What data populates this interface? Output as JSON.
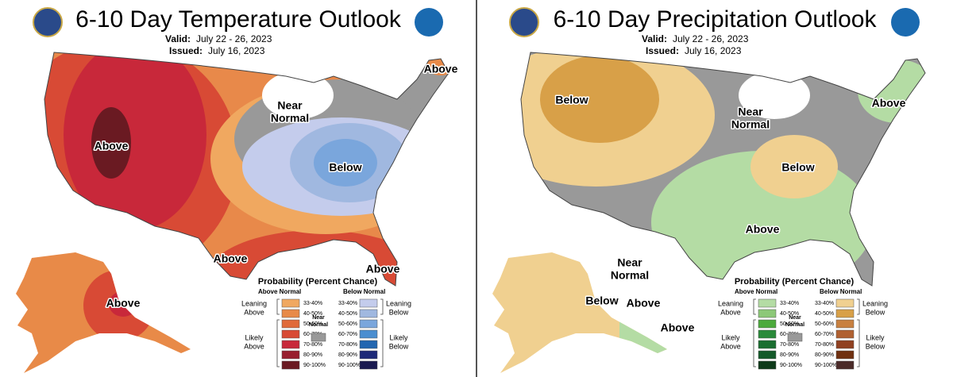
{
  "panels": [
    {
      "title": "6-10 Day Temperature Outlook",
      "valid_label": "Valid:",
      "valid": "July 22 - 26, 2023",
      "issued_label": "Issued:",
      "issued": "July 16, 2023",
      "region_labels": [
        [
          "Above"
        ],
        [
          "Near",
          "Normal"
        ],
        [
          "Above"
        ],
        [
          "Below"
        ],
        [
          "Above"
        ],
        [
          "Above"
        ],
        [
          "Above"
        ]
      ],
      "legend": {
        "title": "Probability (Percent Chance)",
        "left_header": "Above Normal",
        "right_header": "Below Normal",
        "left": [
          {
            "label": "33-40%",
            "color": "#f0a860"
          },
          {
            "label": "40-50%",
            "color": "#e88a48"
          },
          {
            "label": "50-60%",
            "color": "#e06a3a"
          },
          {
            "label": "60-70%",
            "color": "#d84a35"
          },
          {
            "label": "70-80%",
            "color": "#c8283a"
          },
          {
            "label": "80-90%",
            "color": "#981e2e"
          },
          {
            "label": "90-100%",
            "color": "#6a1a22"
          }
        ],
        "right": [
          {
            "label": "33-40%",
            "color": "#c4ccec"
          },
          {
            "label": "40-50%",
            "color": "#a0b8e0"
          },
          {
            "label": "50-60%",
            "color": "#7aa6dc"
          },
          {
            "label": "60-70%",
            "color": "#4a8ed0"
          },
          {
            "label": "70-80%",
            "color": "#2266b0"
          },
          {
            "label": "80-90%",
            "color": "#1e2a78"
          },
          {
            "label": "90-100%",
            "color": "#1a1a50"
          }
        ],
        "leaning_left": [
          "Leaning",
          "Above"
        ],
        "likely_left": [
          "Likely",
          "Above"
        ],
        "near": [
          "Near",
          "Normal"
        ],
        "near_color": "#999999",
        "leaning_right": [
          "Leaning",
          "Below"
        ],
        "likely_right": [
          "Likely",
          "Below"
        ]
      }
    },
    {
      "title": "6-10 Day Precipitation Outlook",
      "valid_label": "Valid:",
      "valid": "July 22 - 26, 2023",
      "issued_label": "Issued:",
      "issued": "July 16, 2023",
      "region_labels": [
        [
          "Below"
        ],
        [
          "Above"
        ],
        [
          "Near",
          "Normal"
        ],
        [
          "Below"
        ],
        [
          "Above"
        ],
        [
          "Near",
          "Normal"
        ],
        [
          "Below"
        ],
        [
          "Above"
        ],
        [
          "Above"
        ]
      ],
      "legend": {
        "title": "Probability (Percent Chance)",
        "left_header": "Above Normal",
        "right_header": "Below Normal",
        "left": [
          {
            "label": "33-40%",
            "color": "#b4dca4"
          },
          {
            "label": "40-50%",
            "color": "#8cc878"
          },
          {
            "label": "50-60%",
            "color": "#4caa3c"
          },
          {
            "label": "60-70%",
            "color": "#2a8a3a"
          },
          {
            "label": "70-80%",
            "color": "#1a6e30"
          },
          {
            "label": "80-90%",
            "color": "#145a2a"
          },
          {
            "label": "90-100%",
            "color": "#0e3a1a"
          }
        ],
        "right": [
          {
            "label": "33-40%",
            "color": "#f0d090"
          },
          {
            "label": "40-50%",
            "color": "#d8a048"
          },
          {
            "label": "50-60%",
            "color": "#c88040"
          },
          {
            "label": "60-70%",
            "color": "#b06030"
          },
          {
            "label": "70-80%",
            "color": "#904020"
          },
          {
            "label": "80-90%",
            "color": "#703010"
          },
          {
            "label": "90-100%",
            "color": "#4a2a28"
          }
        ],
        "leaning_left": [
          "Leaning",
          "Above"
        ],
        "likely_left": [
          "Likely",
          "Above"
        ],
        "near": [
          "Near",
          "Normal"
        ],
        "near_color": "#999999",
        "leaning_right": [
          "Leaning",
          "Below"
        ],
        "likely_right": [
          "Likely",
          "Below"
        ]
      }
    }
  ]
}
